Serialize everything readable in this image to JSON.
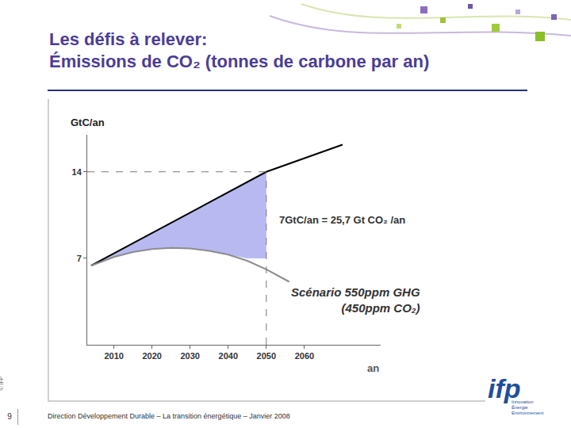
{
  "slide": {
    "title": [
      "Les défis à relever:",
      "Émissions de CO₂ (tonnes de carbone par an)"
    ],
    "footer": "Direction Développement Durable – La transition énergétique – Janvier 2008",
    "page": "9",
    "copyright": "© IFP",
    "logo": {
      "name": "ifp",
      "tagline": [
        "Innovation",
        "Énergie",
        "Environnement"
      ]
    }
  },
  "chart_data": {
    "type": "line",
    "xlabel": "an",
    "ylabel": "GtC/an",
    "xlim": [
      2003,
      2080
    ],
    "xticks": [
      2010,
      2020,
      2030,
      2040,
      2050,
      2060
    ],
    "ylim": [
      0,
      17
    ],
    "yticks": [
      7,
      14
    ],
    "grid": false,
    "series": [
      {
        "type": "area",
        "color": "#b9b9f2",
        "x": [
          2004,
          2010,
          2015,
          2020,
          2025,
          2030,
          2035,
          2040,
          2045,
          2050
        ],
        "values": [
          6.4,
          7.4,
          8.2,
          9.0,
          9.9,
          10.7,
          11.5,
          12.3,
          13.2,
          14
        ],
        "base": [
          6.4,
          7.1,
          7.5,
          7.75,
          7.85,
          7.8,
          7.6,
          7.3,
          7.0,
          7.0
        ]
      },
      {
        "type": "line",
        "color": "#000000",
        "x": [
          2004,
          2050,
          2070
        ],
        "values": [
          6.4,
          14,
          16.2
        ]
      },
      {
        "type": "line",
        "color": "#8c8c8c",
        "x": [
          2004,
          2010,
          2015,
          2020,
          2025,
          2030,
          2035,
          2040,
          2045,
          2050,
          2056
        ],
        "values": [
          6.4,
          7.1,
          7.5,
          7.75,
          7.85,
          7.8,
          7.6,
          7.3,
          6.8,
          6.1,
          5.1
        ]
      }
    ],
    "guides": {
      "x": 2050,
      "y": 14,
      "line_style": "dashed"
    },
    "annotations": [
      {
        "text": [
          "7GtC/an = 25,7 Gt CO₂ /an"
        ],
        "x": 2053,
        "y": 10.1
      },
      {
        "text": [
          "Scénario 550ppm GHG",
          "(450ppm CO₂)"
        ],
        "x": 2056,
        "y": 3.6
      }
    ]
  }
}
